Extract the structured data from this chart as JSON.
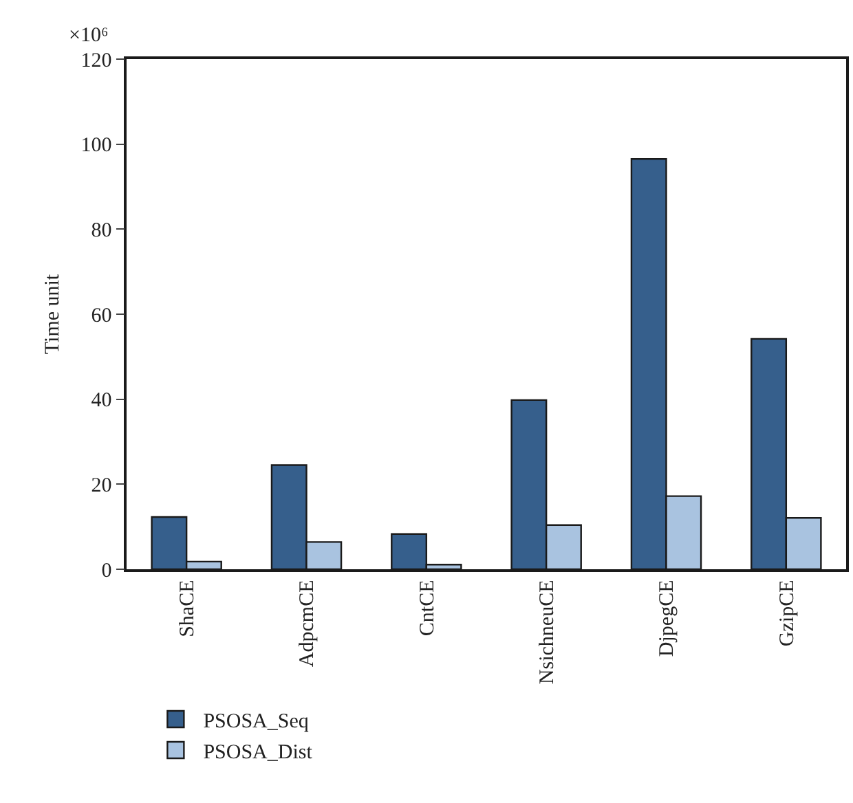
{
  "chart_data": {
    "type": "bar",
    "ylabel": "Time unit",
    "annotations": [
      "×10⁶"
    ],
    "categories": [
      "ShaCE",
      "AdpcmCE",
      "CntCE",
      "NsichneuCE",
      "DjpegCE",
      "GzipCE"
    ],
    "series": [
      {
        "name": "PSOSA_Seq",
        "color": "#365f8c",
        "values": [
          12.3,
          24.5,
          8.3,
          39.8,
          96.5,
          54.2
        ]
      },
      {
        "name": "PSOSA_Dist",
        "color": "#a9c3e0",
        "values": [
          1.8,
          6.4,
          1.1,
          10.4,
          17.2,
          12.1
        ]
      }
    ],
    "ylim": [
      0,
      120
    ],
    "yticks": [
      0,
      20,
      40,
      60,
      80,
      100,
      120
    ],
    "grid": false,
    "legend": "bottom left"
  }
}
